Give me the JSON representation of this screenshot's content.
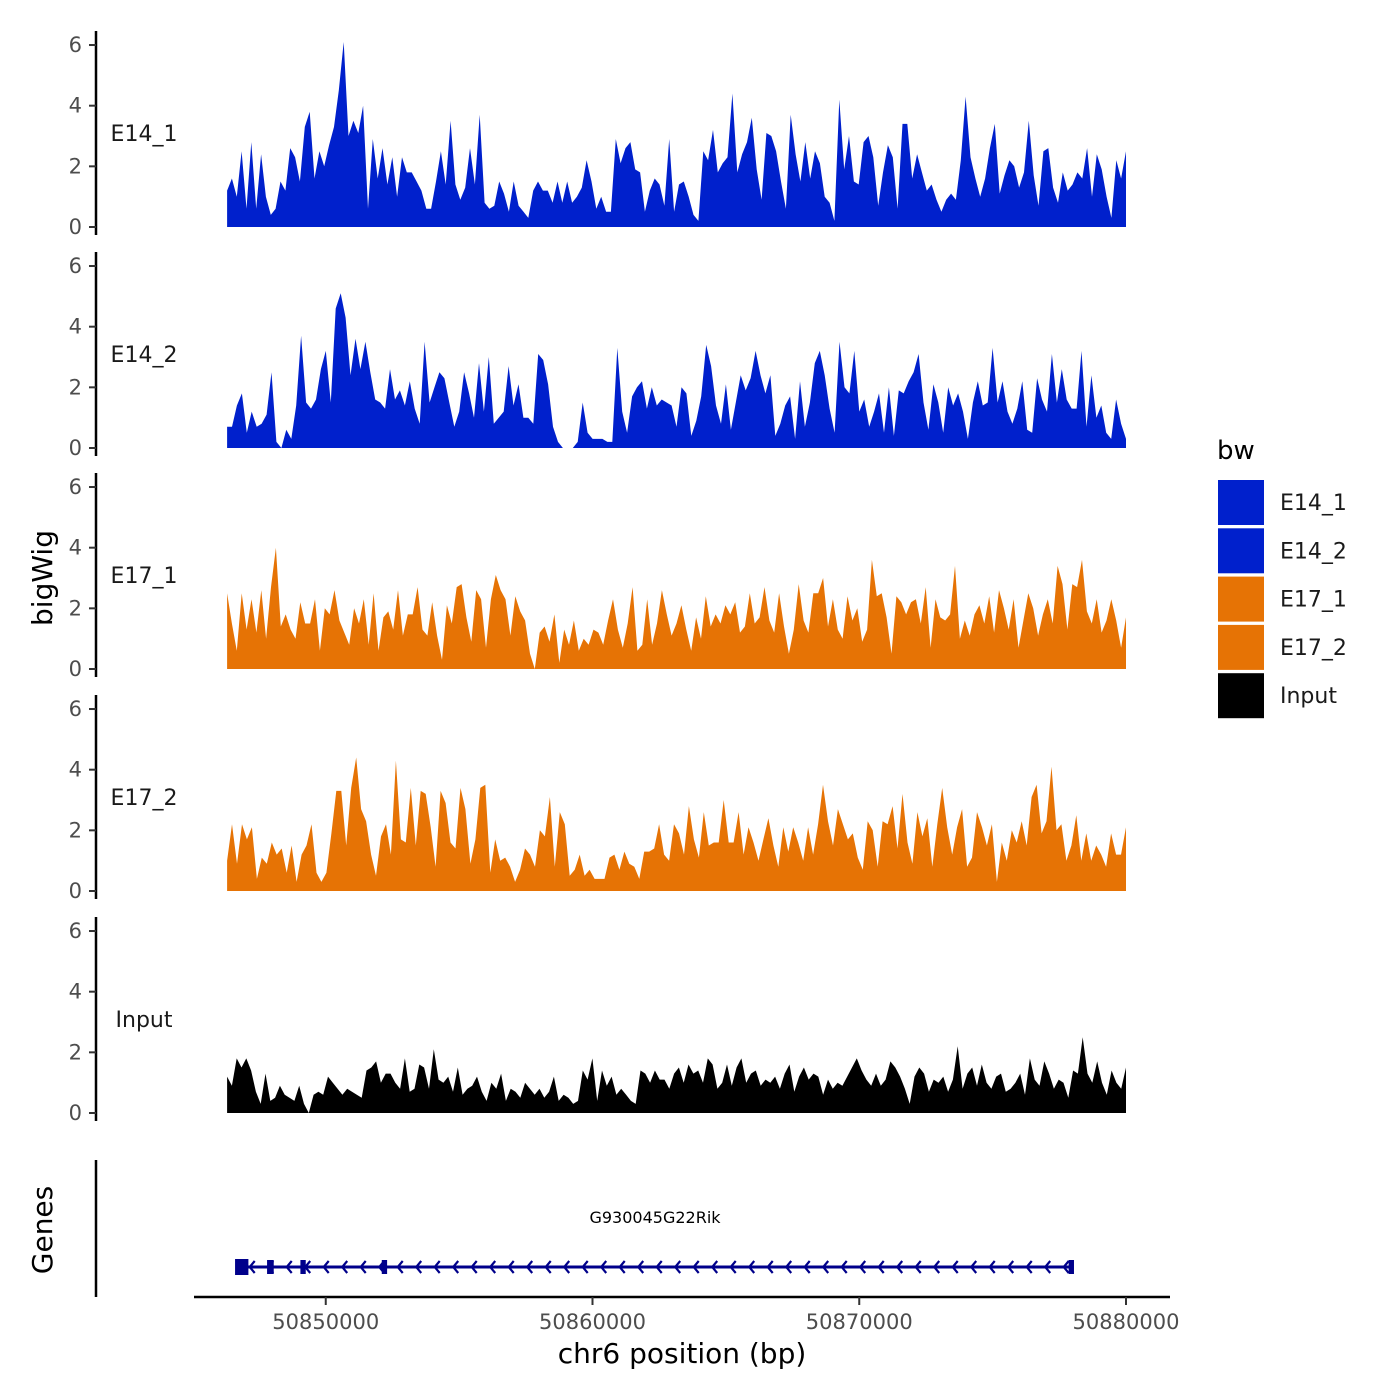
{
  "chart_data": {
    "type": "area",
    "chromosome": "chr6",
    "xlabel": "chr6 position (bp)",
    "ylabel": "bigWig",
    "genes_label": "Genes",
    "xlim": [
      50844500,
      50880800
    ],
    "x_ticks": [
      50850000,
      50860000,
      50870000,
      50880000
    ],
    "x_tick_labels": [
      "50850000",
      "50860000",
      "50870000",
      "50880000"
    ],
    "ylim": [
      0,
      6.4
    ],
    "y_ticks": [
      0,
      2,
      4,
      6
    ],
    "y_tick_labels": [
      "0",
      "2",
      "4",
      "6"
    ],
    "region": [
      50846300,
      50880000
    ],
    "legend": {
      "title": "bw",
      "entries": [
        {
          "name": "E14_1",
          "color": "#0020cc"
        },
        {
          "name": "E14_2",
          "color": "#0020cc"
        },
        {
          "name": "E17_1",
          "color": "#e67305"
        },
        {
          "name": "E17_2",
          "color": "#e67305"
        },
        {
          "name": "Input",
          "color": "#000000"
        }
      ]
    },
    "series": [
      {
        "name": "E14_1",
        "color": "#0020cc",
        "values": [
          1.2,
          1.6,
          1.0,
          2.5,
          0.6,
          2.8,
          0.6,
          2.4,
          1.0,
          0.4,
          0.6,
          1.5,
          1.2,
          2.6,
          2.3,
          1.5,
          3.3,
          3.8,
          1.6,
          2.5,
          2.0,
          2.7,
          3.3,
          4.5,
          6.1,
          3.0,
          3.5,
          3.1,
          4.0,
          0.6,
          2.9,
          1.6,
          2.6,
          1.4,
          2.3,
          1.0,
          2.3,
          1.8,
          1.8,
          1.5,
          1.2,
          0.6,
          0.6,
          1.5,
          2.5,
          1.4,
          3.5,
          1.4,
          0.9,
          1.3,
          2.6,
          1.4,
          3.7,
          0.8,
          0.6,
          0.7,
          1.5,
          1.1,
          0.5,
          1.5,
          0.7,
          0.5,
          0.3,
          1.2,
          1.5,
          1.2,
          1.2,
          0.8,
          1.5,
          0.8,
          1.5,
          0.8,
          1.0,
          1.3,
          2.2,
          1.5,
          0.6,
          1.0,
          0.5,
          0.5,
          2.9,
          2.1,
          2.6,
          2.8,
          1.9,
          1.8,
          0.5,
          1.2,
          1.6,
          1.4,
          0.7,
          2.9,
          0.5,
          1.4,
          1.5,
          1.0,
          0.4,
          0.2,
          2.5,
          2.2,
          3.2,
          1.8,
          2.1,
          2.3,
          4.4,
          1.8,
          2.4,
          2.8,
          3.6,
          1.9,
          0.9,
          3.1,
          3.0,
          2.5,
          1.5,
          0.6,
          3.7,
          2.4,
          1.5,
          2.8,
          1.6,
          2.5,
          2.1,
          1.0,
          0.8,
          0.2,
          4.2,
          1.9,
          3.0,
          1.5,
          1.4,
          2.8,
          3.0,
          2.3,
          0.7,
          1.8,
          2.7,
          2.3,
          0.6,
          3.4,
          3.4,
          1.6,
          2.4,
          1.8,
          1.2,
          1.4,
          0.9,
          0.5,
          0.9,
          1.1,
          0.9,
          2.2,
          4.3,
          2.3,
          1.6,
          1.0,
          1.6,
          2.6,
          3.4,
          1.1,
          1.7,
          2.2,
          2.0,
          1.3,
          1.8,
          3.5,
          1.7,
          0.7,
          2.5,
          2.6,
          1.3,
          0.8,
          1.8,
          1.2,
          1.4,
          1.8,
          1.6,
          2.6,
          1.0,
          2.4,
          1.9,
          1.0,
          0.3,
          2.2,
          1.6,
          2.5
        ]
      },
      {
        "name": "E14_2",
        "color": "#0020cc",
        "values": [
          0.7,
          0.7,
          1.4,
          1.8,
          0.5,
          1.2,
          0.7,
          0.8,
          1.1,
          2.5,
          0.2,
          0.0,
          0.6,
          0.3,
          1.4,
          3.7,
          1.5,
          1.3,
          1.6,
          2.6,
          3.2,
          1.5,
          4.6,
          5.1,
          4.3,
          2.4,
          3.6,
          2.6,
          3.5,
          2.5,
          1.6,
          1.5,
          1.3,
          2.6,
          1.6,
          1.9,
          1.4,
          2.2,
          1.3,
          0.8,
          3.5,
          1.5,
          2.0,
          2.5,
          2.3,
          1.5,
          0.7,
          1.2,
          2.5,
          1.8,
          1.0,
          2.8,
          1.2,
          3.0,
          0.8,
          1.0,
          1.2,
          2.7,
          1.4,
          2.1,
          1.0,
          1.0,
          0.8,
          3.1,
          2.9,
          2.1,
          0.7,
          0.2,
          0.0,
          0.0,
          0.0,
          0.2,
          1.5,
          0.5,
          0.3,
          0.3,
          0.3,
          0.2,
          0.2,
          3.3,
          1.2,
          0.5,
          1.7,
          2.0,
          2.2,
          1.3,
          2.0,
          1.4,
          1.6,
          1.5,
          1.4,
          0.7,
          2.0,
          1.8,
          0.4,
          0.9,
          1.7,
          3.4,
          2.7,
          1.4,
          0.8,
          2.1,
          0.6,
          1.5,
          2.4,
          1.9,
          2.3,
          3.2,
          2.4,
          1.8,
          2.4,
          0.4,
          0.8,
          1.4,
          1.7,
          0.3,
          2.2,
          0.7,
          1.5,
          2.8,
          3.2,
          2.4,
          1.3,
          0.5,
          3.5,
          2.0,
          1.8,
          3.2,
          1.2,
          1.6,
          0.7,
          1.2,
          1.8,
          0.5,
          2.0,
          0.4,
          1.9,
          1.8,
          2.2,
          2.5,
          3.1,
          1.5,
          0.6,
          2.1,
          1.5,
          0.5,
          2.0,
          1.4,
          1.8,
          1.2,
          0.3,
          1.5,
          2.2,
          1.4,
          1.5,
          3.3,
          1.5,
          2.2,
          1.2,
          0.8,
          1.3,
          2.2,
          0.6,
          0.5,
          2.3,
          1.6,
          1.2,
          3.1,
          1.5,
          2.6,
          1.6,
          1.3,
          1.3,
          3.2,
          0.7,
          2.4,
          1.0,
          1.4,
          0.5,
          0.3,
          1.6,
          0.8,
          0.3
        ]
      },
      {
        "name": "E17_1",
        "color": "#e67305",
        "values": [
          2.5,
          1.5,
          0.6,
          2.5,
          1.3,
          2.3,
          1.2,
          2.6,
          1.0,
          2.7,
          4.0,
          1.4,
          1.8,
          1.3,
          1.0,
          2.2,
          1.5,
          1.5,
          2.3,
          0.6,
          2.0,
          1.8,
          2.6,
          1.6,
          1.2,
          0.8,
          2.0,
          1.5,
          2.3,
          0.8,
          2.5,
          0.6,
          1.7,
          1.9,
          1.3,
          2.6,
          1.1,
          1.8,
          1.8,
          2.7,
          1.3,
          1.1,
          2.2,
          1.1,
          0.3,
          2.1,
          1.5,
          2.7,
          2.8,
          1.7,
          0.9,
          2.6,
          2.3,
          0.7,
          2.3,
          3.1,
          2.6,
          2.3,
          1.1,
          2.4,
          1.9,
          1.6,
          0.5,
          0.0,
          1.2,
          1.4,
          0.9,
          1.8,
          0.2,
          1.3,
          0.8,
          1.6,
          0.6,
          1.0,
          0.8,
          1.3,
          1.2,
          0.8,
          1.6,
          2.3,
          1.3,
          0.7,
          1.5,
          2.7,
          0.6,
          0.8,
          2.3,
          0.8,
          1.5,
          2.6,
          1.8,
          1.1,
          1.5,
          2.1,
          1.3,
          0.6,
          1.7,
          1.0,
          2.4,
          1.4,
          1.8,
          1.5,
          2.1,
          1.8,
          2.2,
          1.2,
          1.4,
          2.5,
          1.5,
          1.7,
          2.7,
          1.6,
          1.2,
          2.5,
          1.4,
          0.5,
          1.3,
          2.8,
          1.6,
          1.2,
          2.5,
          2.5,
          3.0,
          1.4,
          2.3,
          1.3,
          1.0,
          2.4,
          1.6,
          2.0,
          0.9,
          1.3,
          3.6,
          2.4,
          2.5,
          1.7,
          0.5,
          2.4,
          2.2,
          1.8,
          2.2,
          2.3,
          1.5,
          2.7,
          0.7,
          2.3,
          1.7,
          1.6,
          1.8,
          3.4,
          1.0,
          1.6,
          1.1,
          1.8,
          2.1,
          1.5,
          2.4,
          1.2,
          2.6,
          2.0,
          1.3,
          2.3,
          0.7,
          1.6,
          2.5,
          2.0,
          1.1,
          1.8,
          2.3,
          1.5,
          3.4,
          2.8,
          1.3,
          2.8,
          2.7,
          3.6,
          1.9,
          1.5,
          2.3,
          1.2,
          1.6,
          2.3,
          1.6,
          0.7,
          1.7
        ]
      },
      {
        "name": "E17_2",
        "color": "#e67305",
        "values": [
          1.0,
          2.2,
          0.9,
          2.2,
          1.7,
          2.1,
          0.4,
          1.1,
          0.9,
          1.6,
          1.2,
          1.4,
          0.6,
          1.5,
          0.3,
          1.2,
          1.5,
          2.2,
          0.6,
          0.3,
          0.6,
          1.9,
          3.3,
          3.3,
          1.5,
          3.4,
          4.4,
          2.7,
          2.3,
          1.2,
          0.5,
          1.8,
          2.2,
          1.2,
          4.3,
          1.7,
          1.6,
          3.4,
          1.5,
          3.3,
          3.2,
          2.1,
          0.8,
          3.3,
          2.9,
          1.6,
          1.4,
          3.4,
          2.7,
          0.9,
          1.7,
          3.4,
          3.5,
          0.6,
          1.7,
          1.0,
          1.1,
          0.8,
          0.3,
          0.7,
          1.4,
          1.2,
          0.8,
          2.0,
          1.8,
          3.1,
          0.8,
          2.6,
          2.2,
          0.5,
          0.7,
          1.2,
          0.5,
          0.7,
          0.4,
          0.4,
          0.4,
          1.1,
          1.2,
          0.7,
          1.3,
          0.9,
          0.8,
          0.4,
          1.3,
          1.3,
          1.4,
          2.2,
          1.2,
          1.0,
          2.2,
          1.9,
          1.2,
          2.8,
          1.7,
          1.1,
          2.6,
          1.5,
          1.6,
          1.6,
          3.0,
          1.6,
          1.6,
          2.6,
          1.2,
          2.1,
          1.6,
          1.0,
          1.7,
          2.4,
          1.5,
          0.8,
          2.1,
          1.3,
          2.1,
          1.6,
          1.0,
          2.1,
          1.2,
          2.2,
          3.5,
          2.3,
          1.5,
          2.7,
          2.2,
          1.7,
          1.9,
          1.1,
          0.7,
          2.3,
          2.0,
          0.8,
          2.3,
          2.2,
          2.8,
          1.4,
          3.2,
          1.6,
          0.9,
          2.6,
          1.8,
          2.4,
          0.8,
          2.2,
          3.4,
          2.1,
          1.2,
          2.1,
          2.7,
          0.8,
          1.1,
          2.6,
          2.1,
          1.5,
          2.2,
          0.3,
          1.6,
          1.0,
          2.0,
          1.6,
          2.3,
          1.5,
          3.1,
          3.5,
          1.9,
          2.3,
          4.1,
          2.0,
          2.2,
          1.0,
          1.5,
          2.5,
          1.0,
          1.9,
          1.0,
          1.5,
          1.2,
          0.8,
          1.9,
          1.2,
          1.2,
          2.1
        ]
      },
      {
        "name": "Input",
        "color": "#000000",
        "values": [
          1.2,
          0.9,
          1.8,
          1.5,
          1.8,
          1.4,
          0.7,
          0.3,
          1.3,
          0.4,
          0.5,
          0.9,
          0.6,
          0.5,
          0.4,
          0.9,
          0.3,
          0.0,
          0.6,
          0.7,
          0.6,
          1.2,
          1.0,
          0.8,
          0.6,
          0.8,
          0.7,
          0.6,
          0.5,
          1.4,
          1.5,
          1.7,
          1.0,
          1.3,
          1.3,
          1.0,
          0.8,
          1.8,
          0.7,
          0.8,
          1.6,
          1.5,
          0.8,
          2.1,
          1.1,
          1.0,
          1.2,
          0.7,
          1.5,
          0.6,
          0.8,
          0.9,
          1.2,
          0.7,
          0.4,
          1.0,
          0.8,
          1.3,
          0.4,
          0.8,
          0.7,
          0.5,
          1.0,
          0.8,
          0.6,
          0.8,
          0.5,
          0.7,
          1.2,
          0.4,
          0.6,
          0.5,
          0.3,
          0.4,
          1.4,
          1.1,
          1.8,
          0.4,
          1.4,
          0.9,
          1.2,
          0.6,
          0.8,
          0.6,
          0.4,
          0.3,
          1.4,
          1.3,
          1.0,
          1.4,
          1.1,
          1.1,
          0.8,
          1.3,
          1.5,
          1.0,
          1.6,
          1.3,
          1.4,
          1.0,
          1.8,
          1.6,
          0.8,
          1.0,
          1.6,
          0.9,
          1.5,
          1.8,
          1.0,
          1.3,
          1.4,
          0.9,
          1.1,
          1.0,
          1.2,
          0.8,
          1.3,
          1.6,
          0.7,
          1.2,
          1.5,
          1.1,
          1.3,
          1.2,
          0.6,
          1.1,
          0.8,
          1.0,
          0.9,
          1.2,
          1.5,
          1.8,
          1.4,
          1.1,
          0.9,
          1.3,
          0.9,
          1.1,
          1.7,
          1.5,
          1.2,
          0.8,
          0.3,
          1.2,
          1.5,
          1.3,
          0.7,
          1.1,
          1.0,
          1.2,
          0.7,
          1.1,
          2.2,
          0.8,
          1.3,
          1.5,
          0.9,
          1.6,
          1.0,
          0.8,
          1.2,
          1.3,
          0.7,
          0.8,
          1.0,
          1.3,
          0.6,
          1.8,
          1.1,
          0.9,
          1.7,
          1.3,
          0.8,
          1.1,
          1.0,
          0.5,
          1.4,
          1.3,
          2.5,
          1.3,
          1.0,
          1.7,
          1.0,
          0.6,
          1.4,
          1.0,
          0.8,
          1.5
        ]
      }
    ],
    "gene": {
      "name": "G930045G22Rik",
      "strand": "-",
      "start": 50846700,
      "end": 50878000,
      "color": "#00008b",
      "exons": [
        [
          50846600,
          50847100
        ],
        [
          50847800,
          50848050
        ],
        [
          50849050,
          50849250
        ],
        [
          50852100,
          50852300
        ],
        [
          50877850,
          50878050
        ]
      ]
    }
  }
}
